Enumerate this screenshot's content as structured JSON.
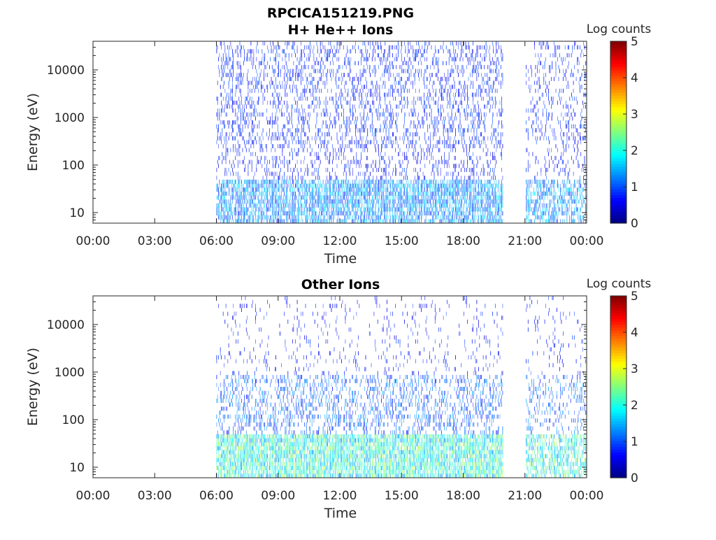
{
  "figure": {
    "title": "RPCICA151219.PNG"
  },
  "chart_data": [
    {
      "type": "heatmap",
      "title": "H+ He++ Ions",
      "xlabel": "Time",
      "ylabel": "Energy (eV)",
      "x_ticks": [
        "00:00",
        "03:00",
        "06:00",
        "09:00",
        "12:00",
        "15:00",
        "18:00",
        "21:00",
        "00:00"
      ],
      "xlim_hours": [
        0,
        24
      ],
      "y_scale": "log",
      "ylim": [
        6,
        40000
      ],
      "y_ticks": [
        10,
        100,
        1000,
        10000
      ],
      "y_tick_labels": [
        "10",
        "100",
        "1000",
        "10000"
      ],
      "colorbar": {
        "label": "Log counts",
        "range": [
          0,
          5
        ],
        "ticks": [
          "0",
          "1",
          "2",
          "3",
          "4",
          "5"
        ],
        "colormap": "jet"
      },
      "data_intervals_hours": [
        [
          6.0,
          19.95
        ],
        [
          21.05,
          24.0
        ]
      ],
      "grid": false
    },
    {
      "type": "heatmap",
      "title": "Other Ions",
      "xlabel": "Time",
      "ylabel": "Energy (eV)",
      "x_ticks": [
        "00:00",
        "03:00",
        "06:00",
        "09:00",
        "12:00",
        "15:00",
        "18:00",
        "21:00",
        "00:00"
      ],
      "xlim_hours": [
        0,
        24
      ],
      "y_scale": "log",
      "ylim": [
        6,
        40000
      ],
      "y_ticks": [
        10,
        100,
        1000,
        10000
      ],
      "y_tick_labels": [
        "10",
        "100",
        "1000",
        "10000"
      ],
      "colorbar": {
        "label": "Log counts",
        "range": [
          0,
          5
        ],
        "ticks": [
          "0",
          "1",
          "2",
          "3",
          "4",
          "5"
        ],
        "colormap": "jet"
      },
      "data_intervals_hours": [
        [
          6.0,
          19.95
        ],
        [
          21.05,
          24.0
        ]
      ],
      "grid": false
    }
  ]
}
